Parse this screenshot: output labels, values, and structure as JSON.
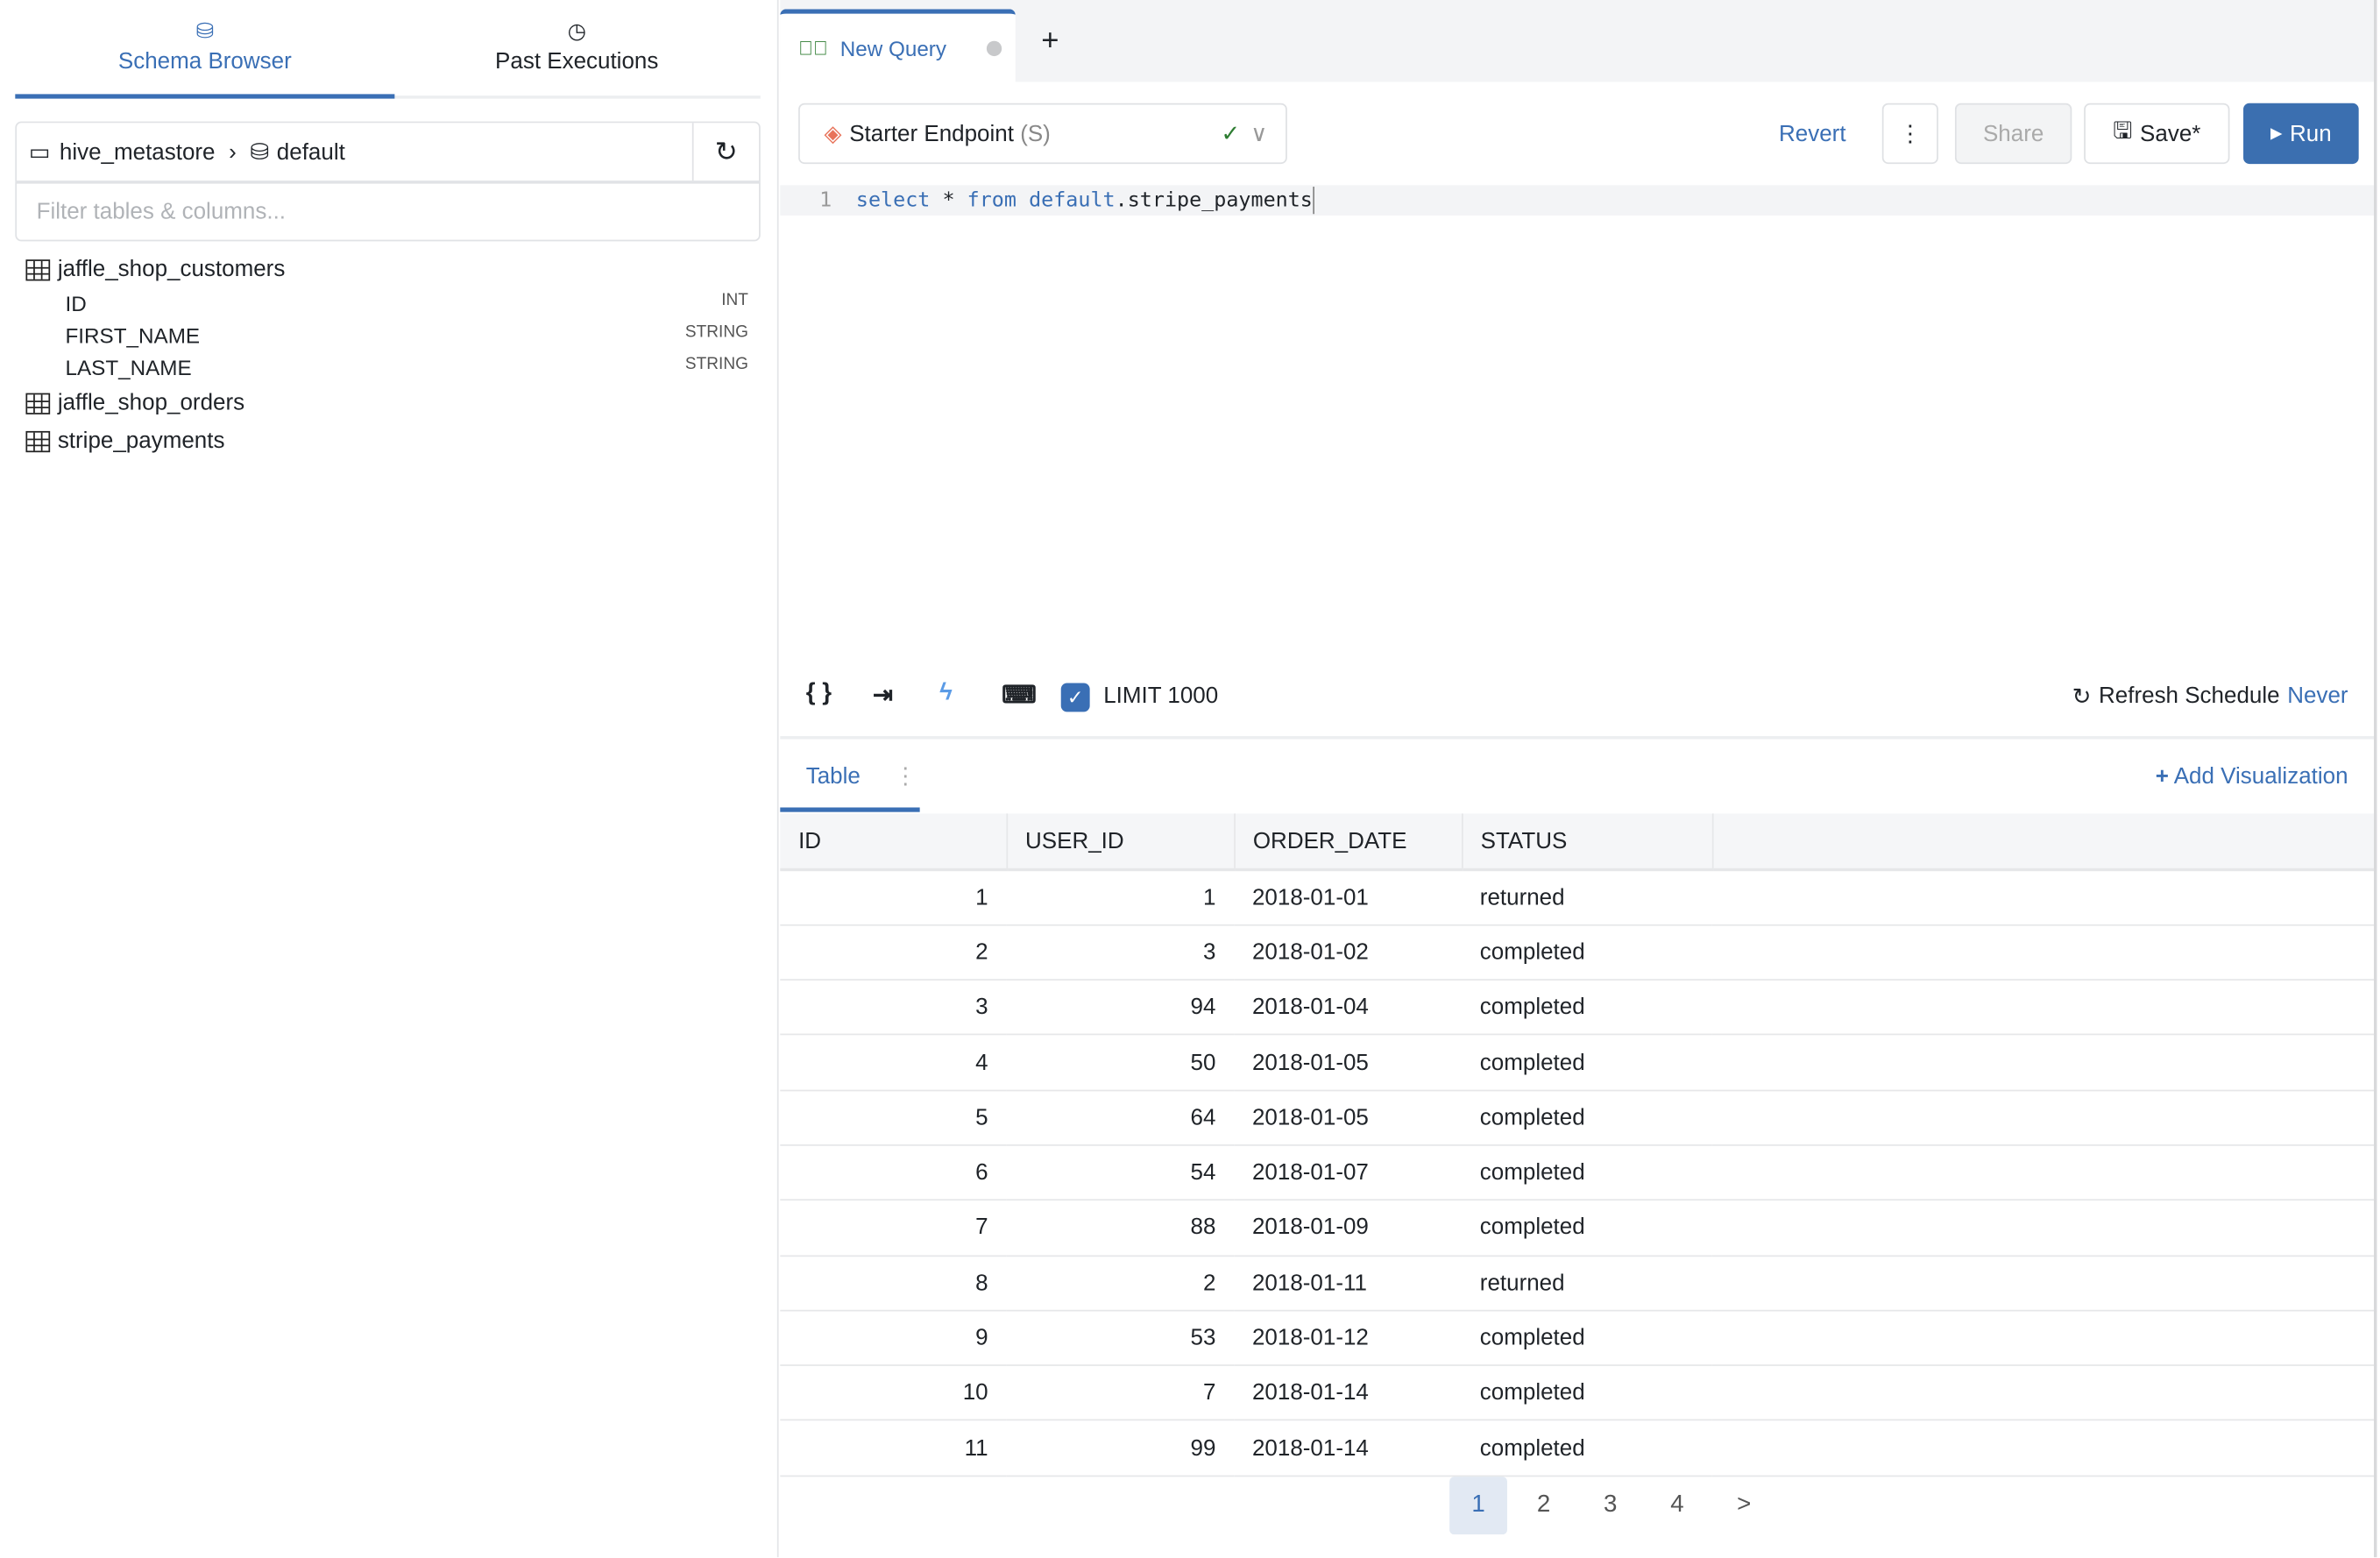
{
  "left_tabs": [
    {
      "label": "Schema Browser",
      "icon": "database-icon",
      "active": true
    },
    {
      "label": "Past Executions",
      "icon": "clock-icon",
      "active": false
    }
  ],
  "breadcrumb": {
    "catalog": "hive_metastore",
    "schema": "default"
  },
  "filter": {
    "placeholder": "Filter tables & columns...",
    "value": ""
  },
  "tables": [
    {
      "name": "jaffle_shop_customers",
      "columns": [
        {
          "name": "ID",
          "type": "INT"
        },
        {
          "name": "FIRST_NAME",
          "type": "STRING"
        },
        {
          "name": "LAST_NAME",
          "type": "STRING"
        }
      ]
    },
    {
      "name": "jaffle_shop_orders"
    },
    {
      "name": "stripe_payments"
    }
  ],
  "query_tab": {
    "label": "New Query",
    "add": "+"
  },
  "toolbar": {
    "endpoint": "Starter Endpoint",
    "endpoint_size": "(S)",
    "revert": "Revert",
    "share": "Share",
    "save": "Save*",
    "run": "Run"
  },
  "editor": {
    "line": "1",
    "kw1": "select",
    "mid": " * ",
    "kw2": "from",
    "kw3": "default",
    "rest": ".stripe_payments"
  },
  "options": {
    "limit_label": "LIMIT 1000",
    "limit_checked": true,
    "refresh_label": "Refresh Schedule",
    "refresh_value": "Never"
  },
  "results": {
    "tab": "Table",
    "add_viz": "Add Visualization",
    "columns": [
      "ID",
      "USER_ID",
      "ORDER_DATE",
      "STATUS"
    ],
    "rows": [
      [
        "1",
        "1",
        "2018-01-01",
        "returned"
      ],
      [
        "2",
        "3",
        "2018-01-02",
        "completed"
      ],
      [
        "3",
        "94",
        "2018-01-04",
        "completed"
      ],
      [
        "4",
        "50",
        "2018-01-05",
        "completed"
      ],
      [
        "5",
        "64",
        "2018-01-05",
        "completed"
      ],
      [
        "6",
        "54",
        "2018-01-07",
        "completed"
      ],
      [
        "7",
        "88",
        "2018-01-09",
        "completed"
      ],
      [
        "8",
        "2",
        "2018-01-11",
        "returned"
      ],
      [
        "9",
        "53",
        "2018-01-12",
        "completed"
      ],
      [
        "10",
        "7",
        "2018-01-14",
        "completed"
      ],
      [
        "11",
        "99",
        "2018-01-14",
        "completed"
      ]
    ]
  },
  "pagination": {
    "pages": [
      "1",
      "2",
      "3",
      "4"
    ],
    "current": "1",
    "next": ">"
  },
  "colors": {
    "accent": "#3a6fb5",
    "success": "#2e7d32",
    "endpoint": "#e8735a"
  }
}
